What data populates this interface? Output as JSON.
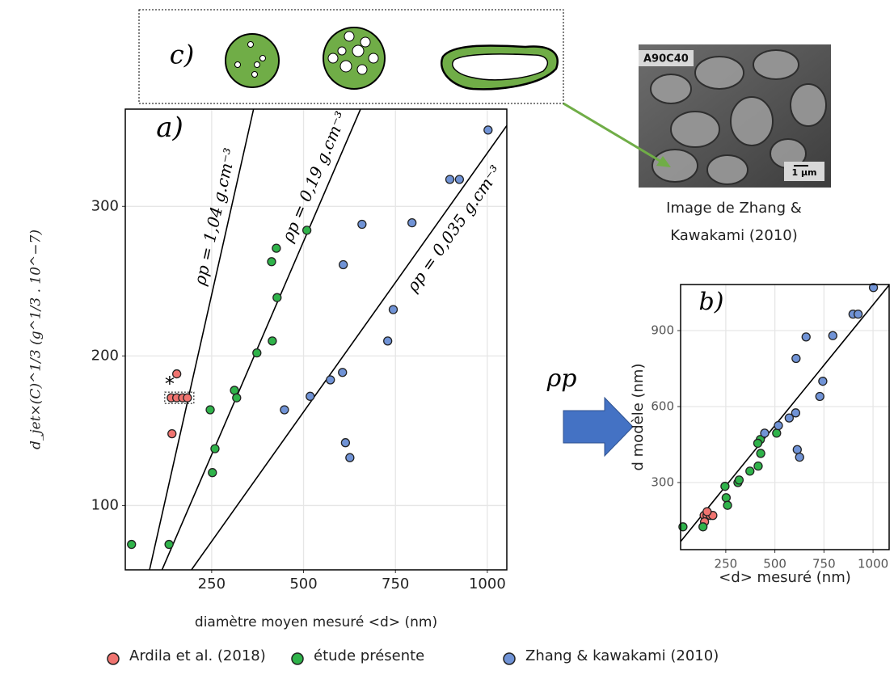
{
  "chart_data": [
    {
      "type": "scatter",
      "panel_label": "a)",
      "x_label": "diamètre moyen mesuré <d> (nm)",
      "y_label": "d_jet×(C)^1/3   (g^1/3 . 10^−7)",
      "annotation": "*",
      "xlim": [
        15,
        1053
      ],
      "ylim": [
        57,
        365
      ],
      "xticks": [
        250,
        500,
        750,
        1000
      ],
      "yticks": [
        100,
        200,
        300
      ],
      "grid": true,
      "series": [
        {
          "name": "Ardila et al. (2018)",
          "color": "#f07470",
          "x": [
            140,
            155,
            171,
            184,
            155,
            142
          ],
          "y": [
            172,
            172,
            172,
            172,
            188,
            148
          ]
        },
        {
          "name": "étude présente",
          "color": "#2fb34a",
          "x": [
            32,
            134,
            252,
            259,
            246,
            312,
            318,
            373,
            415,
            428,
            426,
            413,
            509
          ],
          "y": [
            74,
            74,
            122,
            138,
            164,
            177,
            172,
            202,
            210,
            239,
            272,
            263,
            284
          ]
        },
        {
          "name": "Zhang & kawakami (2010)",
          "color": "#7093d6",
          "x": [
            1002,
            898,
            924,
            659,
            795,
            744,
            608,
            729,
            573,
            606,
            518,
            448,
            614,
            626
          ],
          "y": [
            351,
            318,
            318,
            288,
            289,
            231,
            261,
            210,
            184,
            189,
            173,
            164,
            142,
            132
          ]
        }
      ],
      "lines": [
        {
          "label": "ρp = 1,04 g.cm⁻³",
          "x": [
            81,
            364
          ],
          "y": [
            57,
            365
          ]
        },
        {
          "label": "ρp = 0,19 g.cm⁻³",
          "x": [
            115,
            655
          ],
          "y": [
            57,
            365
          ]
        },
        {
          "label": "ρp = 0,035 g.cm⁻³",
          "x": [
            195,
            1053
          ],
          "y": [
            57,
            354
          ]
        }
      ]
    },
    {
      "type": "scatter",
      "panel_label": "b)",
      "x_label": "<d> mesuré (nm)",
      "y_label": "d modèle (nm)",
      "xlim": [
        20,
        1082
      ],
      "ylim": [
        35,
        1082
      ],
      "xticks": [
        250,
        500,
        750,
        1000
      ],
      "yticks": [
        300,
        600,
        900
      ],
      "grid": true,
      "series": [
        {
          "color": "#f07470",
          "x": [
            140,
            155,
            171,
            184,
            155,
            142
          ],
          "y": [
            170,
            170,
            170,
            170,
            185,
            145
          ]
        },
        {
          "color": "#2fb34a",
          "x": [
            32,
            134,
            252,
            259,
            246,
            312,
            318,
            373,
            415,
            428,
            426,
            413,
            509
          ],
          "y": [
            125,
            125,
            240,
            210,
            285,
            300,
            310,
            345,
            365,
            415,
            470,
            455,
            495
          ]
        },
        {
          "color": "#7093d6",
          "x": [
            1002,
            898,
            924,
            659,
            795,
            744,
            608,
            729,
            573,
            606,
            518,
            448,
            614,
            626
          ],
          "y": [
            1070,
            965,
            965,
            875,
            880,
            700,
            790,
            640,
            555,
            575,
            525,
            495,
            430,
            400
          ]
        }
      ],
      "lines": [
        {
          "x": [
            20,
            1082
          ],
          "y": [
            67,
            1080
          ]
        }
      ]
    }
  ],
  "figure": {
    "panel_c_label": "c)",
    "image_tag": "A90C40",
    "scale_bar": "1 µm",
    "image_caption": [
      "Image de Zhang &",
      "Kawakami (2010)"
    ],
    "arrow_label": "ρp"
  }
}
